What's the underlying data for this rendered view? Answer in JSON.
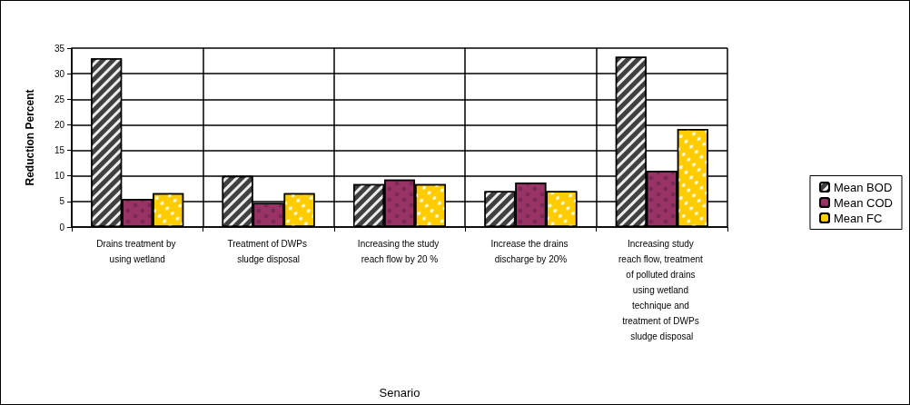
{
  "chart_data": {
    "type": "bar",
    "xlabel": "Senario",
    "ylabel": "Reduction Percent",
    "categories": [
      "Drains treatment by using wetland",
      "Treatment of DWPs sludge disposal",
      "Increasing the study reach flow by 20 %",
      "Increase the drains discharge by 20%",
      "Increasing study reach flow, treatment of polluted drains using wetland technique and treatment of DWPs sludge disposal"
    ],
    "series": [
      {
        "name": "Mean BOD",
        "color": "#404040",
        "values": [
          33,
          10,
          8.4,
          7,
          33.3
        ]
      },
      {
        "name": "Mean COD",
        "color": "#993366",
        "values": [
          5.5,
          4.7,
          9.3,
          8.7,
          11
        ]
      },
      {
        "name": "Mean FC",
        "color": "#ffcc00",
        "values": [
          6.6,
          6.6,
          8.4,
          7,
          19.2
        ]
      }
    ],
    "ylim": [
      0,
      35
    ],
    "yticks": [
      0,
      5,
      10,
      15,
      20,
      25,
      30,
      35
    ],
    "grid": true,
    "legend": "right"
  }
}
